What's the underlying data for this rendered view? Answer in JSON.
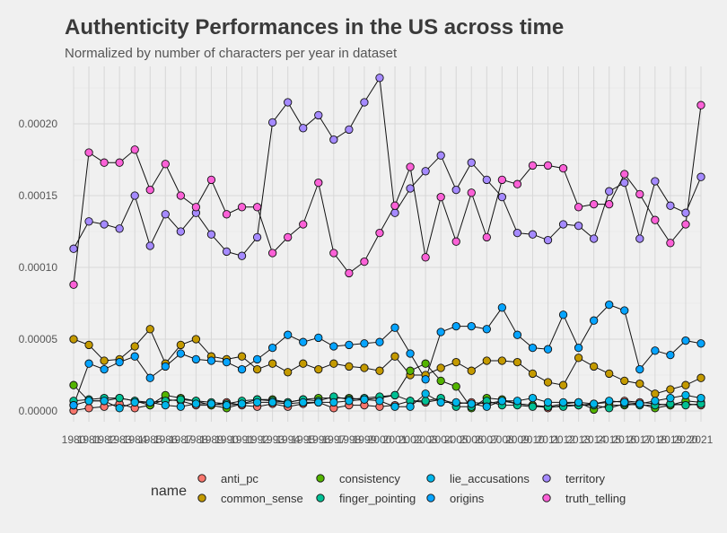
{
  "chart_data": {
    "type": "line",
    "title": "Authenticity Performances in the US across time",
    "subtitle": "Normalized by number of characters per year in dataset",
    "xlabel": "",
    "ylabel": "",
    "x": [
      1980,
      1981,
      1982,
      1983,
      1984,
      1985,
      1986,
      1987,
      1988,
      1989,
      1990,
      1991,
      1992,
      1993,
      1994,
      1995,
      1996,
      1997,
      1998,
      1999,
      2000,
      2001,
      2002,
      2003,
      2004,
      2005,
      2006,
      2007,
      2008,
      2009,
      2010,
      2011,
      2012,
      2013,
      2014,
      2015,
      2016,
      2017,
      2018,
      2019,
      2020,
      2021
    ],
    "xlim": [
      1980,
      2021
    ],
    "ylim": [
      0,
      0.00024
    ],
    "yticks": [
      "0.00000",
      "0.00005",
      "0.00010",
      "0.00015",
      "0.00020"
    ],
    "yticks_values": [
      0,
      5e-05,
      0.0001,
      0.00015,
      0.0002
    ],
    "grid": true,
    "legend_title": "name",
    "legend_position": "bottom",
    "series": [
      {
        "name": "anti_pc",
        "color": "#F8766D",
        "values": [
          3e-07,
          2e-06,
          3e-06,
          5e-06,
          2e-06,
          4e-06,
          8e-06,
          7e-06,
          4e-06,
          4e-06,
          6e-06,
          4e-06,
          3e-06,
          5e-06,
          3e-06,
          5e-06,
          6e-06,
          2e-06,
          4e-06,
          4e-06,
          3e-06,
          4e-06,
          7e-06,
          6e-06,
          8e-06,
          5e-06,
          6e-06,
          5e-06,
          7e-06,
          5e-06,
          4e-06,
          2e-06,
          4e-06,
          4e-06,
          5e-06,
          6e-06,
          7e-06,
          6e-06,
          5e-06,
          4e-06,
          5e-06,
          4e-06
        ]
      },
      {
        "name": "common_sense",
        "color": "#C49A00",
        "values": [
          5e-05,
          4.6e-05,
          3.5e-05,
          3.6e-05,
          4.5e-05,
          5.7e-05,
          3.3e-05,
          4.6e-05,
          5e-05,
          3.8e-05,
          3.6e-05,
          3.8e-05,
          2.9e-05,
          3.3e-05,
          2.7e-05,
          3.3e-05,
          2.9e-05,
          3.3e-05,
          3.1e-05,
          3e-05,
          2.8e-05,
          3.8e-05,
          2.5e-05,
          2.5e-05,
          3e-05,
          3.4e-05,
          2.8e-05,
          3.5e-05,
          3.5e-05,
          3.4e-05,
          2.6e-05,
          2e-05,
          1.8e-05,
          3.7e-05,
          3.1e-05,
          2.6e-05,
          2.1e-05,
          1.9e-05,
          1.2e-05,
          1.5e-05,
          1.8e-05,
          2.3e-05
        ]
      },
      {
        "name": "consistency",
        "color": "#53B400",
        "values": [
          1.8e-05,
          7e-06,
          7e-06,
          9e-06,
          7e-06,
          4e-06,
          1.1e-05,
          9e-06,
          7e-06,
          4e-06,
          2e-06,
          5e-06,
          8e-06,
          8e-06,
          6e-06,
          8e-06,
          9e-06,
          9e-06,
          9e-06,
          8e-06,
          9e-06,
          1.1e-05,
          2.8e-05,
          3.3e-05,
          2.1e-05,
          1.7e-05,
          2e-06,
          9e-06,
          8e-06,
          5e-06,
          4e-06,
          3e-06,
          5e-06,
          6e-06,
          1e-06,
          4e-06,
          4e-06,
          5e-06,
          2e-06,
          4e-06,
          7e-06,
          6e-06
        ]
      },
      {
        "name": "finger_pointing",
        "color": "#00C094",
        "values": [
          7e-06,
          8e-06,
          9e-06,
          9e-06,
          7e-06,
          6e-06,
          7e-06,
          8e-06,
          7e-06,
          6e-06,
          5e-06,
          7e-06,
          8e-06,
          7e-06,
          6e-06,
          8e-06,
          7e-06,
          1e-05,
          8e-06,
          9e-06,
          1e-05,
          1.1e-05,
          7e-06,
          7e-06,
          9e-06,
          3e-06,
          3e-06,
          7e-06,
          4e-06,
          4e-06,
          3e-06,
          3e-06,
          3e-06,
          4e-06,
          4e-06,
          2e-06,
          5e-06,
          4e-06,
          4e-06,
          5e-06,
          4e-06,
          5e-06
        ]
      },
      {
        "name": "lie_accusations",
        "color": "#00B6EB",
        "values": [
          4e-06,
          7e-06,
          7e-06,
          2e-06,
          6e-06,
          6e-06,
          4e-06,
          3e-06,
          5e-06,
          5e-06,
          4e-06,
          5e-06,
          6e-06,
          6e-06,
          5e-06,
          6e-06,
          6e-06,
          6e-06,
          7e-06,
          8e-06,
          7e-06,
          3e-06,
          3e-06,
          1.2e-05,
          6e-06,
          6e-06,
          5e-06,
          3e-06,
          7e-06,
          7e-06,
          9e-06,
          6e-06,
          6e-06,
          6e-06,
          5e-06,
          7e-06,
          6e-06,
          5e-06,
          7e-06,
          9e-06,
          1.1e-05,
          9e-06
        ]
      },
      {
        "name": "origins",
        "color": "#06A4FF",
        "values": [
          4e-06,
          3.3e-05,
          2.9e-05,
          3.4e-05,
          3.8e-05,
          2.3e-05,
          3.1e-05,
          4e-05,
          3.6e-05,
          3.5e-05,
          3.4e-05,
          2.9e-05,
          3.6e-05,
          4.4e-05,
          5.3e-05,
          4.8e-05,
          5.1e-05,
          4.5e-05,
          4.6e-05,
          4.7e-05,
          4.8e-05,
          5.8e-05,
          4e-05,
          2.2e-05,
          5.5e-05,
          5.9e-05,
          5.9e-05,
          5.7e-05,
          7.2e-05,
          5.3e-05,
          4.4e-05,
          4.3e-05,
          6.7e-05,
          4.4e-05,
          6.3e-05,
          7.4e-05,
          7e-05,
          2.9e-05,
          4.2e-05,
          3.9e-05,
          4.9e-05,
          4.7e-05
        ]
      },
      {
        "name": "territory",
        "color": "#A58AFF",
        "values": [
          0.000113,
          0.000132,
          0.00013,
          0.000127,
          0.00015,
          0.000115,
          0.000137,
          0.000125,
          0.000138,
          0.000123,
          0.000111,
          0.000108,
          0.000121,
          0.000201,
          0.000215,
          0.000197,
          0.000206,
          0.000189,
          0.000196,
          0.000215,
          0.000232,
          0.000138,
          0.000155,
          0.000167,
          0.000178,
          0.000154,
          0.000173,
          0.000161,
          0.000149,
          0.000124,
          0.000123,
          0.000119,
          0.00013,
          0.000129,
          0.00012,
          0.000153,
          0.000159,
          0.00012,
          0.00016,
          0.000143,
          0.000138,
          0.000163
        ]
      },
      {
        "name": "truth_telling",
        "color": "#FB61D7",
        "values": [
          8.8e-05,
          0.00018,
          0.000173,
          0.000173,
          0.000182,
          0.000154,
          0.000172,
          0.00015,
          0.000142,
          0.000161,
          0.000137,
          0.000142,
          0.000142,
          0.00011,
          0.000121,
          0.00013,
          0.000159,
          0.00011,
          9.6e-05,
          0.000104,
          0.000124,
          0.000143,
          0.00017,
          0.000107,
          0.000149,
          0.000118,
          0.000152,
          0.000121,
          0.000161,
          0.000158,
          0.000171,
          0.000171,
          0.000169,
          0.000142,
          0.000144,
          0.000144,
          0.000165,
          0.000151,
          0.000133,
          0.000117,
          0.00013,
          0.000213
        ]
      }
    ]
  }
}
